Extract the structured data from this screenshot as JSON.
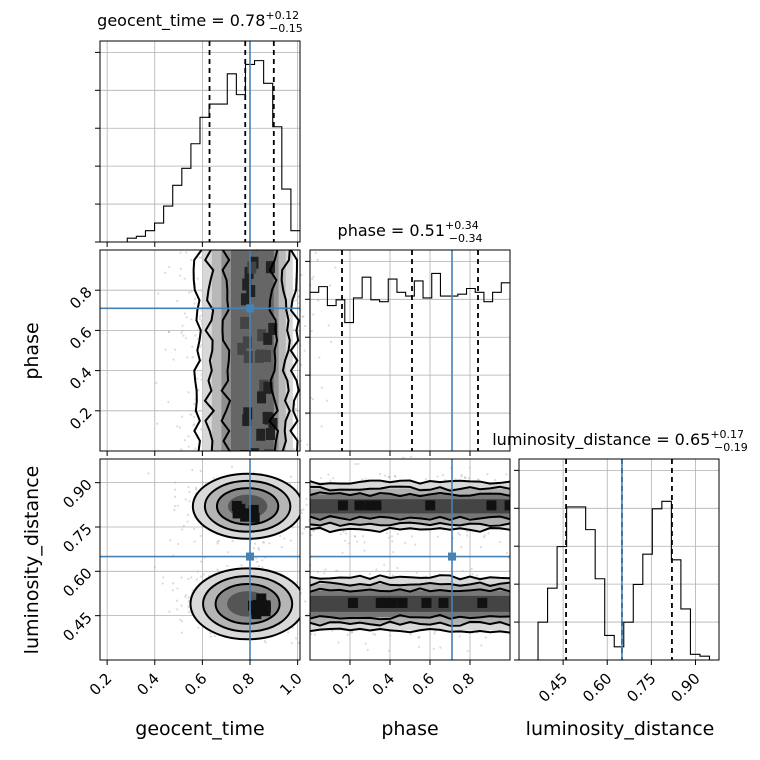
{
  "chart_data": {
    "type": "corner",
    "parameters": [
      {
        "name": "geocent_time",
        "median": 0.78,
        "plus": "+0.12",
        "minus": "−0.15",
        "median_label": "0.78",
        "quantiles": [
          0.63,
          0.78,
          0.9
        ],
        "truth": 0.8,
        "range": [
          0.17,
          1.01
        ],
        "ticks": [
          0.2,
          0.4,
          0.6,
          0.8,
          1.0
        ],
        "tick_labels": [
          "0.2",
          "0.4",
          "0.6",
          "0.8",
          "1.0"
        ]
      },
      {
        "name": "phase",
        "median": 0.51,
        "plus": "+0.34",
        "minus": "−0.34",
        "median_label": "0.51",
        "quantiles": [
          0.16,
          0.51,
          0.84
        ],
        "truth": 0.71,
        "range": [
          0.0,
          1.0
        ],
        "ticks": [
          0.2,
          0.4,
          0.6,
          0.8
        ],
        "tick_labels": [
          "0.2",
          "0.4",
          "0.6",
          "0.8"
        ]
      },
      {
        "name": "luminosity_distance",
        "median": 0.65,
        "plus": "+0.17",
        "minus": "−0.19",
        "median_label": "0.65",
        "quantiles": [
          0.46,
          0.65,
          0.82
        ],
        "truth": 0.65,
        "range": [
          0.3,
          0.98
        ],
        "ticks": [
          0.45,
          0.6,
          0.75,
          0.9
        ],
        "tick_labels": [
          "0.45",
          "0.60",
          "0.75",
          "0.90"
        ]
      }
    ],
    "hist_1d": {
      "geocent_time": [
        0.0,
        0.0,
        0.0,
        0.02,
        0.03,
        0.06,
        0.1,
        0.19,
        0.3,
        0.39,
        0.52,
        0.66,
        0.73,
        0.73,
        0.89,
        0.78,
        0.94,
        0.96,
        0.84,
        0.61,
        0.28,
        0.06
      ],
      "phase": [
        0.84,
        0.87,
        0.77,
        0.8,
        0.68,
        0.81,
        0.92,
        0.8,
        0.79,
        0.91,
        0.84,
        0.82,
        0.9,
        0.81,
        0.94,
        0.82,
        0.82,
        0.83,
        0.86,
        0.84,
        0.79,
        0.84,
        0.89
      ],
      "luminosity_distance": [
        0.0,
        0.0,
        0.2,
        0.38,
        0.6,
        0.81,
        0.81,
        0.69,
        0.43,
        0.13,
        0.07,
        0.2,
        0.4,
        0.56,
        0.8,
        0.84,
        0.53,
        0.27,
        0.03,
        0.02,
        0.0
      ]
    },
    "y_ticks_1d_unlabeled": true,
    "grid": true,
    "contour_levels": 4
  }
}
